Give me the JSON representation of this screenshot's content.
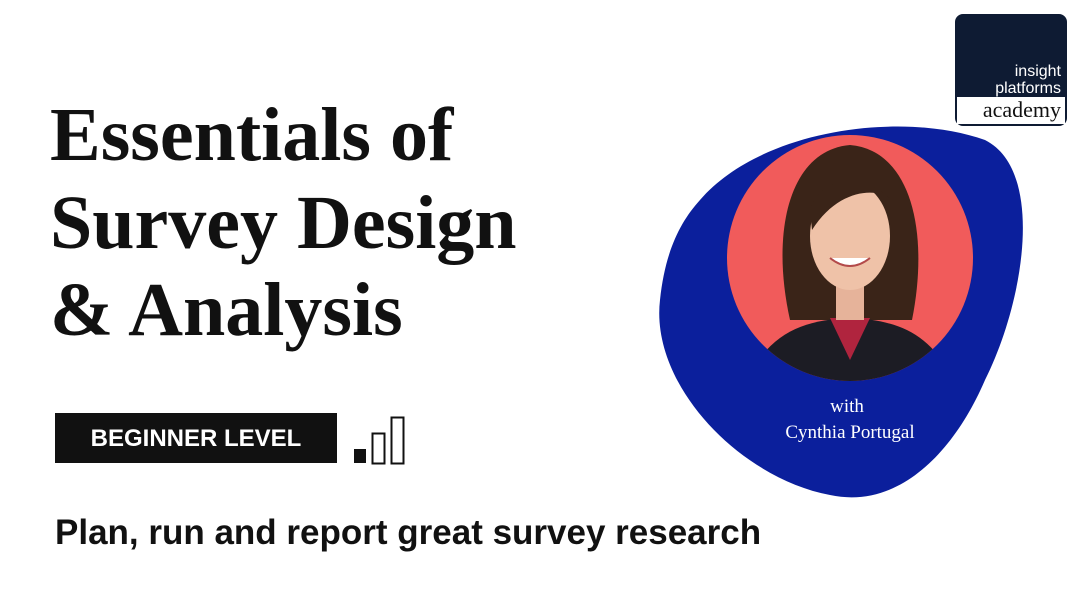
{
  "title_lines": [
    "Essentials of",
    "Survey Design",
    "& Analysis"
  ],
  "level_badge": "BEGINNER LEVEL",
  "tagline": "Plan, run and report great survey research",
  "logo": {
    "lines": [
      "insight",
      "platforms"
    ],
    "highlight": "academy"
  },
  "presenter": {
    "prefix": "with",
    "name": "Cynthia Portugal"
  }
}
